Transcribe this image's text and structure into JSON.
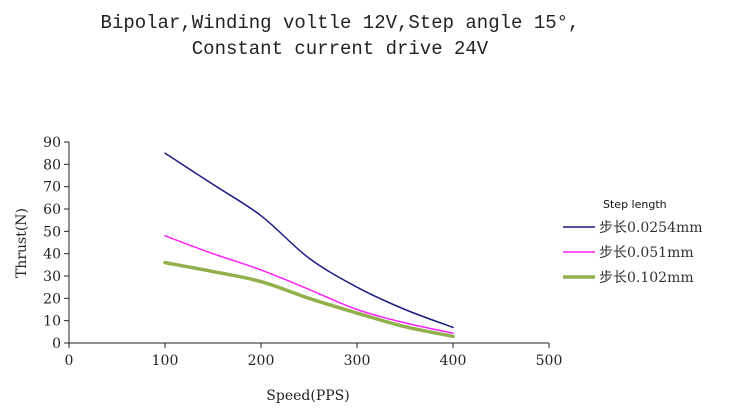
{
  "chart_data": {
    "type": "line",
    "title": "Bipolar,Winding voltle 12V,Step angle 15°,",
    "subtitle": "Constant current drive 24V",
    "xlabel": "Speed(PPS)",
    "ylabel": "Thrust(N)",
    "xlim": [
      0,
      500
    ],
    "ylim": [
      0,
      90
    ],
    "xticks": [
      "0",
      "100",
      "200",
      "300",
      "400",
      "500"
    ],
    "yticks": [
      "0",
      "10",
      "20",
      "30",
      "40",
      "50",
      "60",
      "70",
      "80",
      "90"
    ],
    "grid": false,
    "legend_title": "Step length",
    "legend_position": "right",
    "x": [
      100,
      150,
      200,
      250,
      300,
      350,
      400
    ],
    "series": [
      {
        "name": "步长0.0254mm",
        "color": "#1a1a80",
        "values": [
          85,
          71,
          57,
          38,
          25,
          15,
          7
        ]
      },
      {
        "name": "步长0.051mm",
        "color": "#ff20ff",
        "values": [
          48,
          40,
          32.7,
          24,
          15,
          9,
          4.4
        ]
      },
      {
        "name": "步长0.102mm",
        "color": "#8fb04a",
        "values": [
          36,
          32,
          27.5,
          20,
          13.4,
          7.3,
          3
        ]
      }
    ]
  }
}
